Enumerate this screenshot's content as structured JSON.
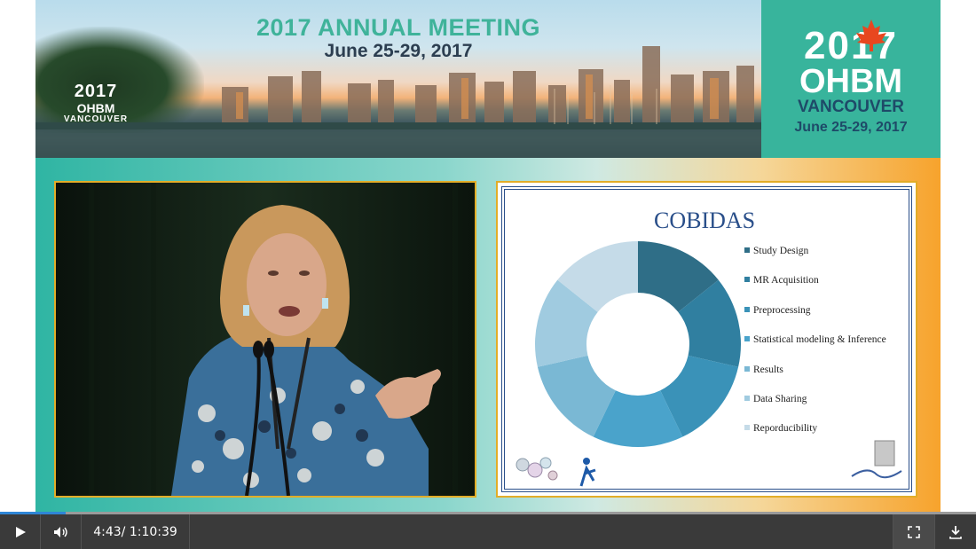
{
  "banner": {
    "title": "2017 ANNUAL MEETING",
    "dates": "June 25-29, 2017",
    "small_logo": {
      "year": "2017",
      "name": "OHBM",
      "city": "VANCOUVER"
    },
    "logo": {
      "year": "2017",
      "name": "OHBM",
      "city": "VANCOUVER",
      "dates": "June 25-29, 2017"
    }
  },
  "slide": {
    "chart_data": {
      "type": "pie",
      "title": "COBIDAS",
      "style": "donut",
      "legend_position": "right",
      "categories": [
        "Study Design",
        "MR Acquisition",
        "Preprocessing",
        "Statistical modeling & Inference",
        "Results",
        "Data Sharing",
        "Reporducibility"
      ],
      "values": [
        14.29,
        14.29,
        14.29,
        14.29,
        14.29,
        14.29,
        14.29
      ],
      "colors": [
        "#2f6e87",
        "#307fa0",
        "#3a92b8",
        "#4aa3cb",
        "#7ab8d4",
        "#a0cbe0",
        "#c5dbe8"
      ]
    }
  },
  "player": {
    "current_time": "4:43",
    "duration": "/ 1:10:39",
    "progress": 0.067,
    "icons": {
      "play": "play-icon",
      "volume": "volume-icon",
      "fullscreen": "fullscreen-icon",
      "download": "download-icon"
    }
  }
}
